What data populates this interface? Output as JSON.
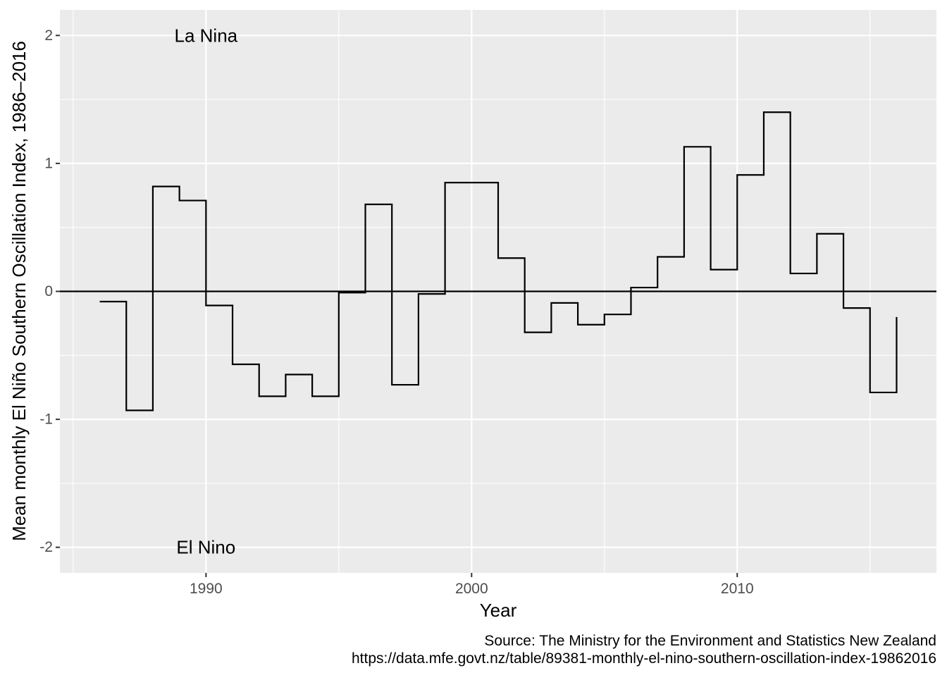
{
  "chart_data": {
    "type": "line",
    "step": true,
    "title": "",
    "xlabel": "Year",
    "ylabel": "Mean monthly El Niño Southern Oscillation Index, 1986–2016",
    "xlim": [
      1984.5,
      2017.5
    ],
    "ylim": [
      -2.2,
      2.2
    ],
    "x_ticks": [
      1990,
      2000,
      2010
    ],
    "y_ticks": [
      -2,
      -1,
      0,
      1,
      2
    ],
    "x_tick_labels": [
      "1990",
      "2000",
      "2010"
    ],
    "y_tick_labels": [
      "-2",
      "-1",
      "0",
      "1",
      "2"
    ],
    "grid": true,
    "zero_line": true,
    "series": [
      {
        "x": [
          1986,
          1987,
          1988,
          1989,
          1990,
          1991,
          1992,
          1993,
          1994,
          1995,
          1996,
          1997,
          1998,
          1999,
          2000,
          2001,
          2002,
          2003,
          2004,
          2005,
          2006,
          2007,
          2008,
          2009,
          2010,
          2011,
          2012,
          2013,
          2014,
          2015,
          2016
        ],
        "y": [
          -0.08,
          -0.93,
          0.82,
          0.71,
          -0.11,
          -0.57,
          -0.82,
          -0.65,
          -0.82,
          -0.01,
          0.68,
          -0.73,
          -0.02,
          0.85,
          0.85,
          0.26,
          -0.32,
          -0.09,
          -0.26,
          -0.18,
          0.03,
          0.27,
          1.13,
          0.17,
          0.91,
          1.4,
          0.14,
          0.45,
          -0.13,
          -0.79,
          -0.2
        ]
      }
    ],
    "annotations": [
      {
        "text": "La Nina",
        "x": 1990,
        "y": 2
      },
      {
        "text": "El Nino",
        "x": 1990,
        "y": -2
      }
    ],
    "caption": [
      "Source: The Ministry for the Environment and Statistics New Zealand",
      "https://data.mfe.govt.nz/table/89381-monthly-el-nino-southern-oscillation-index-19862016"
    ]
  },
  "colors": {
    "panel_background": "#ebebeb",
    "grid": "#ffffff",
    "line": "#000000",
    "tick_text": "#4d4d4d",
    "text": "#000000"
  }
}
